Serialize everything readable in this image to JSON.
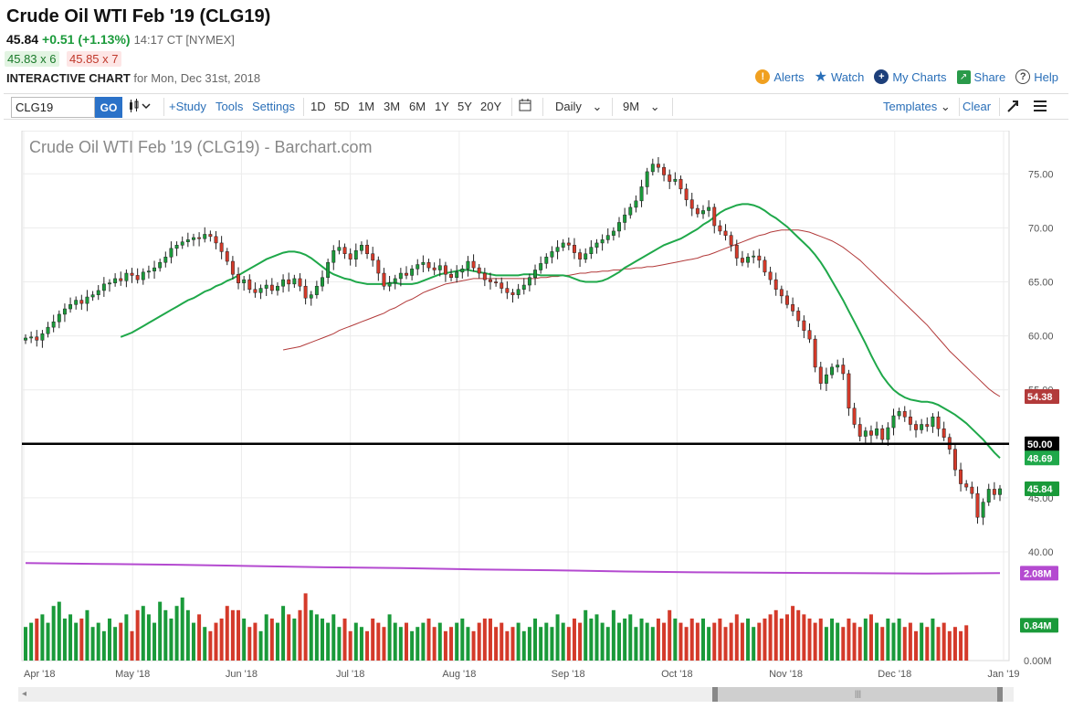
{
  "header": {
    "title": "Crude Oil WTI Feb '19 (CLG19)",
    "last": "45.84",
    "change": "+0.51 (+1.13%)",
    "time": "14:17 CT [NYMEX]",
    "bid": "45.83 x 6",
    "ask": "45.85 x 7",
    "chart_label": "INTERACTIVE CHART",
    "chart_date": "for Mon, Dec 31st, 2018"
  },
  "links": {
    "alerts": "Alerts",
    "watch": "Watch",
    "my_charts": "My Charts",
    "share": "Share",
    "help": "Help"
  },
  "toolbar": {
    "symbol": "CLG19",
    "go": "GO",
    "study": "+Study",
    "tools": "Tools",
    "settings": "Settings",
    "ranges": [
      "1D",
      "5D",
      "1M",
      "3M",
      "6M",
      "1Y",
      "5Y",
      "20Y"
    ],
    "interval": "Daily",
    "period": "9M",
    "templates": "Templates",
    "clear": "Clear"
  },
  "colors": {
    "up": "#1a9a3a",
    "down": "#d43a2a",
    "ma_fast": "#1fa84a",
    "ma_slow": "#b23a3a",
    "volume_ma": "#b44ad0",
    "accent": "#2b72c8"
  },
  "chart_data": {
    "type": "candlestick",
    "title": "Crude Oil WTI Feb '19 (CLG19) - Barchart.com",
    "ylim": [
      40,
      79
    ],
    "yticks": [
      "40.00",
      "45.00",
      "50.00",
      "55.00",
      "60.00",
      "65.00",
      "70.00",
      "75.00"
    ],
    "xlabels": [
      "Apr '18",
      "May '18",
      "Jun '18",
      "Jul '18",
      "Aug '18",
      "Sep '18",
      "Oct '18",
      "Nov '18",
      "Dec '18",
      "Jan '19"
    ],
    "horizontal_line": 50.0,
    "badges": [
      {
        "label": "54.38",
        "value": 54.38,
        "color": "#b23a3a"
      },
      {
        "label": "50.00",
        "value": 50.0,
        "color": "#000000"
      },
      {
        "label": "48.69",
        "value": 48.69,
        "color": "#1fa84a"
      },
      {
        "label": "45.84",
        "value": 45.84,
        "color": "#1a9a3a"
      }
    ],
    "closes": [
      59.8,
      59.9,
      59.6,
      60.2,
      60.8,
      61.3,
      62.0,
      62.5,
      62.9,
      63.3,
      63.0,
      63.6,
      63.8,
      64.2,
      64.8,
      64.9,
      65.3,
      65.1,
      65.8,
      65.6,
      65.2,
      65.9,
      66.0,
      66.3,
      66.8,
      67.3,
      68.1,
      68.4,
      68.7,
      68.9,
      69.1,
      69.0,
      69.4,
      69.2,
      68.6,
      67.8,
      66.9,
      65.7,
      64.9,
      65.2,
      64.3,
      64.0,
      64.4,
      64.7,
      64.2,
      64.6,
      65.2,
      64.8,
      65.3,
      64.6,
      63.5,
      63.8,
      64.6,
      65.4,
      66.8,
      67.9,
      68.2,
      67.6,
      67.1,
      67.9,
      68.4,
      67.6,
      67.0,
      65.8,
      64.6,
      64.9,
      65.3,
      65.8,
      65.6,
      66.2,
      66.6,
      66.8,
      66.3,
      66.1,
      66.5,
      65.7,
      65.4,
      65.9,
      66.2,
      66.9,
      66.3,
      65.8,
      65.2,
      65.0,
      64.9,
      64.4,
      64.0,
      63.8,
      64.3,
      64.7,
      65.4,
      66.1,
      66.7,
      67.3,
      67.8,
      68.2,
      68.6,
      68.4,
      67.7,
      67.1,
      67.6,
      68.2,
      68.6,
      68.9,
      69.3,
      69.7,
      70.5,
      71.2,
      71.9,
      72.5,
      73.8,
      75.2,
      75.9,
      75.6,
      74.9,
      74.3,
      74.5,
      73.6,
      72.6,
      71.8,
      71.3,
      71.6,
      71.9,
      70.2,
      69.7,
      69.3,
      68.4,
      67.2,
      66.8,
      67.3,
      67.4,
      67.0,
      65.9,
      65.2,
      64.3,
      63.7,
      62.9,
      62.3,
      61.4,
      60.5,
      59.7,
      57.1,
      55.6,
      56.4,
      57.1,
      57.3,
      56.5,
      53.3,
      51.8,
      50.7,
      51.2,
      50.8,
      51.4,
      50.4,
      51.5,
      52.6,
      53.0,
      52.5,
      51.8,
      51.3,
      51.8,
      51.6,
      52.5,
      51.4,
      50.6,
      49.5,
      47.6,
      46.3,
      46.0,
      45.4,
      43.2,
      44.6,
      45.8,
      45.3,
      45.84
    ],
    "ma_fast": [
      59.9,
      60.1,
      60.3,
      60.6,
      60.9,
      61.2,
      61.5,
      61.8,
      62.1,
      62.4,
      62.7,
      63.0,
      63.3,
      63.5,
      63.8,
      64.1,
      64.3,
      64.6,
      64.8,
      65.1,
      65.3,
      65.6,
      65.9,
      66.2,
      66.5,
      66.8,
      67.1,
      67.3,
      67.5,
      67.7,
      67.8,
      67.8,
      67.7,
      67.5,
      67.2,
      66.8,
      66.4,
      66.0,
      65.7,
      65.5,
      65.3,
      65.2,
      65.0,
      64.9,
      64.8,
      64.8,
      64.8,
      64.8,
      64.9,
      64.9,
      64.8,
      64.8,
      64.8,
      64.9,
      65.1,
      65.3,
      65.5,
      65.7,
      65.8,
      65.9,
      66.0,
      66.1,
      66.1,
      66.0,
      65.9,
      65.8,
      65.7,
      65.6,
      65.6,
      65.6,
      65.6,
      65.6,
      65.7,
      65.7,
      65.7,
      65.6,
      65.6,
      65.6,
      65.6,
      65.6,
      65.5,
      65.3,
      65.1,
      65.0,
      65.0,
      65.0,
      65.1,
      65.3,
      65.6,
      65.9,
      66.3,
      66.6,
      66.9,
      67.2,
      67.5,
      67.8,
      68.1,
      68.4,
      68.6,
      68.8,
      69.0,
      69.3,
      69.6,
      69.9,
      70.3,
      70.6,
      71.0,
      71.4,
      71.7,
      71.9,
      72.1,
      72.2,
      72.2,
      72.1,
      71.9,
      71.6,
      71.2,
      70.9,
      70.5,
      70.1,
      69.6,
      69.1,
      68.6,
      68.1,
      67.5,
      66.8,
      66.0,
      65.1,
      64.2,
      63.3,
      62.3,
      61.3,
      60.3,
      59.3,
      58.2,
      57.2,
      56.3,
      55.6,
      55.0,
      54.6,
      54.3,
      54.1,
      54.0,
      53.9,
      53.9,
      53.8,
      53.6,
      53.3,
      53.0,
      52.7,
      52.3,
      51.9,
      51.4,
      50.9,
      50.4,
      49.8,
      49.2,
      48.69
    ],
    "ma_slow": [
      58.7,
      58.8,
      58.9,
      59.0,
      59.2,
      59.4,
      59.6,
      59.8,
      60.0,
      60.2,
      60.5,
      60.7,
      60.9,
      61.1,
      61.3,
      61.5,
      61.7,
      61.9,
      62.1,
      62.4,
      62.6,
      62.9,
      63.2,
      63.4,
      63.7,
      64.0,
      64.2,
      64.4,
      64.6,
      64.8,
      64.9,
      65.0,
      65.1,
      65.2,
      65.3,
      65.3,
      65.3,
      65.3,
      65.3,
      65.3,
      65.3,
      65.3,
      65.3,
      65.3,
      65.3,
      65.3,
      65.4,
      65.4,
      65.5,
      65.5,
      65.6,
      65.6,
      65.7,
      65.8,
      65.8,
      65.9,
      65.9,
      66.0,
      66.0,
      66.1,
      66.1,
      66.2,
      66.2,
      66.3,
      66.3,
      66.4,
      66.4,
      66.5,
      66.6,
      66.7,
      66.8,
      66.9,
      67.0,
      67.1,
      67.2,
      67.4,
      67.5,
      67.7,
      67.9,
      68.1,
      68.3,
      68.5,
      68.7,
      68.9,
      69.1,
      69.3,
      69.4,
      69.6,
      69.7,
      69.8,
      69.8,
      69.8,
      69.8,
      69.7,
      69.6,
      69.4,
      69.2,
      69.0,
      68.8,
      68.5,
      68.2,
      67.8,
      67.4,
      67.0,
      66.5,
      66.0,
      65.5,
      65.0,
      64.5,
      64.0,
      63.5,
      63.0,
      62.5,
      62.0,
      61.5,
      61.0,
      60.4,
      59.8,
      59.2,
      58.6,
      58.1,
      57.6,
      57.1,
      56.6,
      56.1,
      55.6,
      55.1,
      54.7,
      54.38
    ],
    "volume": {
      "ylim": [
        0,
        2.5
      ],
      "yticks": [
        "0.00M",
        "0.84M",
        "2.08M"
      ],
      "badges": [
        {
          "label": "2.08M",
          "value": 2.08,
          "color": "#b44ad0"
        },
        {
          "label": "0.84M",
          "value": 0.84,
          "color": "#1a9a3a"
        }
      ],
      "average": [
        2.32,
        2.3,
        2.28,
        2.25,
        2.22,
        2.2,
        2.17,
        2.15,
        2.12,
        2.1,
        2.09,
        2.08,
        2.07,
        2.08
      ],
      "values": [
        0.8,
        0.9,
        1.0,
        1.1,
        0.9,
        1.3,
        1.4,
        1.0,
        1.1,
        0.9,
        1.0,
        1.2,
        0.8,
        0.9,
        0.7,
        1.0,
        0.8,
        0.9,
        1.1,
        0.7,
        1.2,
        1.3,
        1.1,
        0.9,
        1.4,
        1.2,
        1.0,
        1.3,
        1.5,
        1.2,
        0.9,
        1.1,
        0.8,
        0.7,
        0.9,
        1.0,
        1.3,
        1.2,
        1.2,
        1.0,
        0.8,
        0.9,
        0.7,
        1.1,
        1.0,
        0.9,
        1.3,
        1.1,
        1.0,
        1.2,
        1.6,
        1.2,
        1.1,
        1.0,
        0.9,
        1.1,
        0.8,
        1.0,
        0.7,
        0.9,
        0.8,
        0.7,
        1.0,
        0.9,
        0.8,
        1.1,
        0.9,
        0.8,
        0.9,
        0.7,
        0.8,
        0.9,
        1.0,
        0.8,
        0.9,
        0.7,
        0.8,
        0.9,
        1.0,
        0.8,
        0.7,
        0.9,
        1.0,
        1.0,
        0.8,
        0.9,
        0.7,
        0.8,
        0.9,
        0.7,
        0.8,
        1.0,
        0.8,
        0.9,
        0.8,
        1.1,
        0.9,
        0.8,
        1.0,
        0.9,
        1.2,
        1.0,
        1.1,
        0.9,
        0.8,
        1.2,
        0.9,
        1.0,
        1.1,
        0.8,
        1.0,
        0.9,
        0.8,
        1.0,
        0.9,
        1.2,
        1.0,
        0.9,
        0.8,
        1.0,
        0.9,
        1.0,
        0.8,
        0.9,
        1.0,
        0.8,
        0.9,
        1.1,
        0.9,
        1.0,
        0.8,
        0.9,
        1.0,
        1.1,
        1.2,
        1.0,
        1.1,
        1.3,
        1.2,
        1.1,
        1.0,
        0.9,
        1.0,
        0.8,
        1.0,
        0.9,
        0.8,
        1.0,
        0.9,
        0.8,
        1.0,
        1.1,
        0.9,
        0.8,
        1.0,
        0.9,
        1.0,
        0.8,
        0.9,
        0.7,
        0.9,
        0.8,
        1.0,
        0.8,
        0.9,
        0.7,
        0.8,
        0.7,
        0.84
      ]
    }
  }
}
